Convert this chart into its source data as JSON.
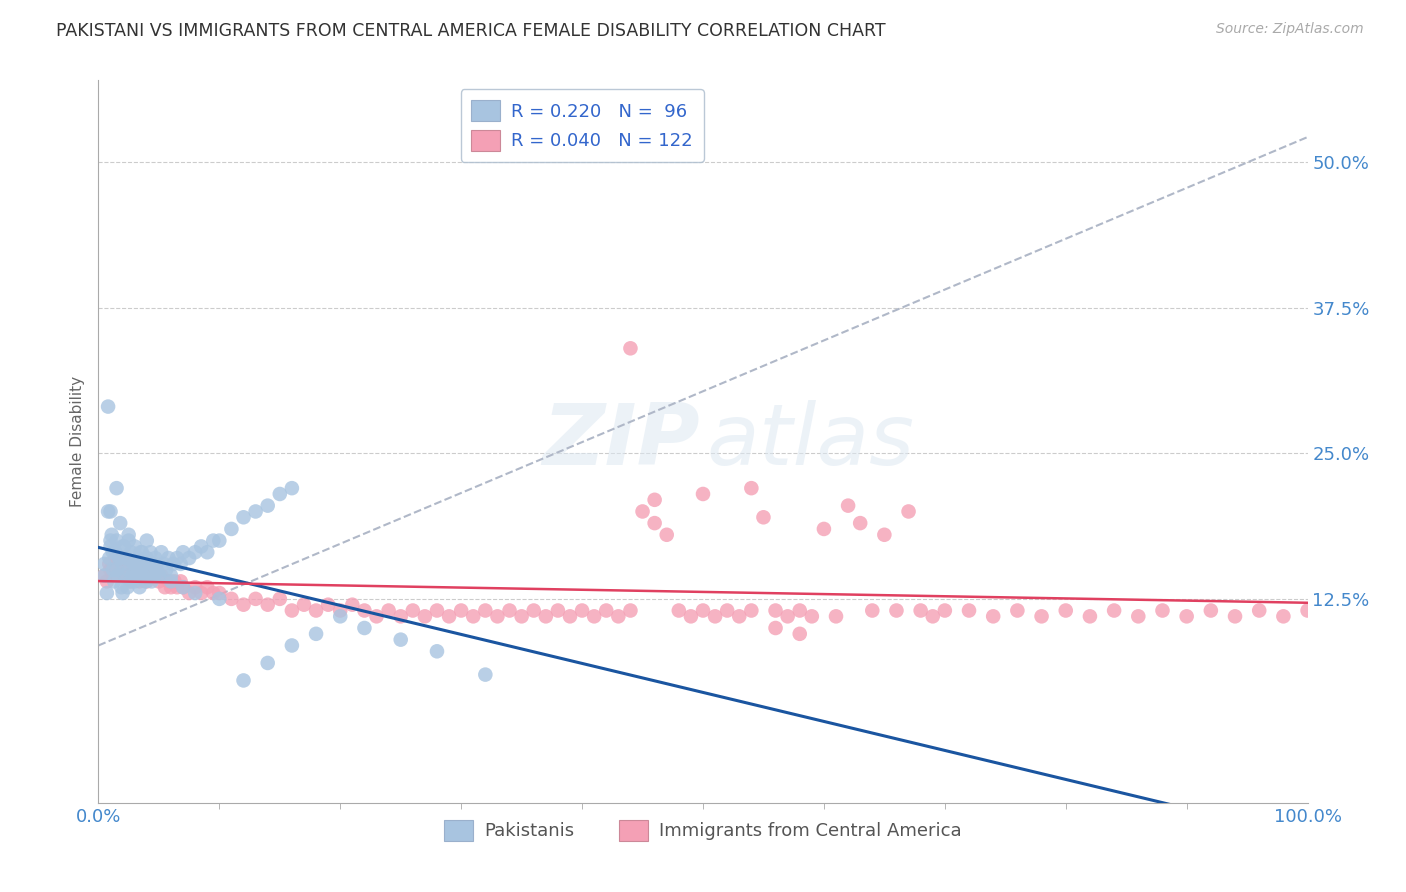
{
  "title": "PAKISTANI VS IMMIGRANTS FROM CENTRAL AMERICA FEMALE DISABILITY CORRELATION CHART",
  "source": "Source: ZipAtlas.com",
  "ylabel": "Female Disability",
  "xlim": [
    0.0,
    1.0
  ],
  "ylim": [
    -0.05,
    0.57
  ],
  "yticks": [
    0.125,
    0.25,
    0.375,
    0.5
  ],
  "ytick_labels": [
    "12.5%",
    "25.0%",
    "37.5%",
    "50.0%"
  ],
  "xticks": [
    0.0,
    1.0
  ],
  "xtick_labels": [
    "0.0%",
    "100.0%"
  ],
  "r_blue": 0.22,
  "n_blue": 96,
  "r_pink": 0.04,
  "n_pink": 122,
  "blue_color": "#a8c4e0",
  "pink_color": "#f4a0b5",
  "blue_line_color": "#1a55a0",
  "pink_line_color": "#e04060",
  "legend_label_blue": "Pakistanis",
  "legend_label_pink": "Immigrants from Central America",
  "watermark_zip": "ZIP",
  "watermark_atlas": "atlas",
  "background_color": "#ffffff",
  "grid_color": "#cccccc",
  "title_color": "#333333",
  "axis_label_color": "#666666",
  "tick_label_color": "#4488cc",
  "blue_scatter_x": [
    0.005,
    0.007,
    0.008,
    0.009,
    0.01,
    0.01,
    0.011,
    0.012,
    0.013,
    0.014,
    0.015,
    0.015,
    0.016,
    0.017,
    0.018,
    0.019,
    0.02,
    0.02,
    0.021,
    0.022,
    0.023,
    0.024,
    0.025,
    0.025,
    0.026,
    0.027,
    0.028,
    0.029,
    0.03,
    0.03,
    0.031,
    0.032,
    0.033,
    0.034,
    0.035,
    0.036,
    0.037,
    0.038,
    0.039,
    0.04,
    0.041,
    0.042,
    0.043,
    0.044,
    0.045,
    0.046,
    0.047,
    0.048,
    0.05,
    0.052,
    0.054,
    0.056,
    0.058,
    0.06,
    0.062,
    0.065,
    0.068,
    0.07,
    0.075,
    0.08,
    0.085,
    0.09,
    0.095,
    0.1,
    0.11,
    0.12,
    0.13,
    0.14,
    0.15,
    0.16,
    0.005,
    0.008,
    0.01,
    0.012,
    0.015,
    0.018,
    0.02,
    0.025,
    0.03,
    0.035,
    0.04,
    0.045,
    0.05,
    0.06,
    0.07,
    0.08,
    0.1,
    0.12,
    0.14,
    0.16,
    0.18,
    0.2,
    0.22,
    0.25,
    0.28,
    0.32
  ],
  "blue_scatter_y": [
    0.155,
    0.13,
    0.29,
    0.16,
    0.17,
    0.2,
    0.18,
    0.15,
    0.14,
    0.165,
    0.175,
    0.22,
    0.145,
    0.16,
    0.19,
    0.135,
    0.155,
    0.13,
    0.17,
    0.145,
    0.16,
    0.135,
    0.15,
    0.175,
    0.14,
    0.165,
    0.145,
    0.155,
    0.14,
    0.17,
    0.155,
    0.145,
    0.16,
    0.135,
    0.15,
    0.165,
    0.145,
    0.155,
    0.14,
    0.16,
    0.145,
    0.155,
    0.165,
    0.14,
    0.155,
    0.145,
    0.16,
    0.15,
    0.145,
    0.165,
    0.155,
    0.15,
    0.16,
    0.145,
    0.155,
    0.16,
    0.155,
    0.165,
    0.16,
    0.165,
    0.17,
    0.165,
    0.175,
    0.175,
    0.185,
    0.195,
    0.2,
    0.205,
    0.215,
    0.22,
    0.145,
    0.2,
    0.175,
    0.165,
    0.15,
    0.16,
    0.17,
    0.18,
    0.155,
    0.165,
    0.175,
    0.155,
    0.145,
    0.14,
    0.135,
    0.13,
    0.125,
    0.055,
    0.07,
    0.085,
    0.095,
    0.11,
    0.1,
    0.09,
    0.08,
    0.06
  ],
  "pink_scatter_x": [
    0.005,
    0.007,
    0.009,
    0.01,
    0.012,
    0.014,
    0.015,
    0.016,
    0.018,
    0.02,
    0.02,
    0.022,
    0.024,
    0.025,
    0.027,
    0.028,
    0.03,
    0.032,
    0.034,
    0.035,
    0.037,
    0.038,
    0.04,
    0.042,
    0.045,
    0.048,
    0.05,
    0.052,
    0.055,
    0.058,
    0.06,
    0.063,
    0.065,
    0.068,
    0.07,
    0.075,
    0.08,
    0.085,
    0.09,
    0.095,
    0.1,
    0.11,
    0.12,
    0.13,
    0.14,
    0.15,
    0.16,
    0.17,
    0.18,
    0.19,
    0.2,
    0.21,
    0.22,
    0.23,
    0.24,
    0.25,
    0.26,
    0.27,
    0.28,
    0.29,
    0.3,
    0.31,
    0.32,
    0.33,
    0.34,
    0.35,
    0.36,
    0.37,
    0.38,
    0.39,
    0.4,
    0.41,
    0.42,
    0.43,
    0.44,
    0.45,
    0.46,
    0.47,
    0.48,
    0.49,
    0.5,
    0.51,
    0.52,
    0.53,
    0.54,
    0.55,
    0.56,
    0.57,
    0.58,
    0.59,
    0.6,
    0.61,
    0.62,
    0.63,
    0.64,
    0.65,
    0.66,
    0.67,
    0.68,
    0.69,
    0.7,
    0.72,
    0.74,
    0.76,
    0.78,
    0.8,
    0.82,
    0.84,
    0.86,
    0.88,
    0.9,
    0.92,
    0.94,
    0.96,
    0.98,
    1.0,
    0.46,
    0.5,
    0.54,
    0.58,
    0.44,
    0.56
  ],
  "pink_scatter_y": [
    0.145,
    0.14,
    0.155,
    0.15,
    0.145,
    0.16,
    0.155,
    0.145,
    0.15,
    0.145,
    0.16,
    0.155,
    0.145,
    0.15,
    0.14,
    0.155,
    0.145,
    0.15,
    0.14,
    0.155,
    0.145,
    0.15,
    0.14,
    0.155,
    0.145,
    0.15,
    0.14,
    0.145,
    0.135,
    0.14,
    0.135,
    0.14,
    0.135,
    0.14,
    0.135,
    0.13,
    0.135,
    0.13,
    0.135,
    0.13,
    0.13,
    0.125,
    0.12,
    0.125,
    0.12,
    0.125,
    0.115,
    0.12,
    0.115,
    0.12,
    0.115,
    0.12,
    0.115,
    0.11,
    0.115,
    0.11,
    0.115,
    0.11,
    0.115,
    0.11,
    0.115,
    0.11,
    0.115,
    0.11,
    0.115,
    0.11,
    0.115,
    0.11,
    0.115,
    0.11,
    0.115,
    0.11,
    0.115,
    0.11,
    0.115,
    0.2,
    0.19,
    0.18,
    0.115,
    0.11,
    0.115,
    0.11,
    0.115,
    0.11,
    0.115,
    0.195,
    0.115,
    0.11,
    0.115,
    0.11,
    0.185,
    0.11,
    0.205,
    0.19,
    0.115,
    0.18,
    0.115,
    0.2,
    0.115,
    0.11,
    0.115,
    0.115,
    0.11,
    0.115,
    0.11,
    0.115,
    0.11,
    0.115,
    0.11,
    0.115,
    0.11,
    0.115,
    0.11,
    0.115,
    0.11,
    0.115,
    0.21,
    0.215,
    0.22,
    0.095,
    0.34,
    0.1
  ]
}
